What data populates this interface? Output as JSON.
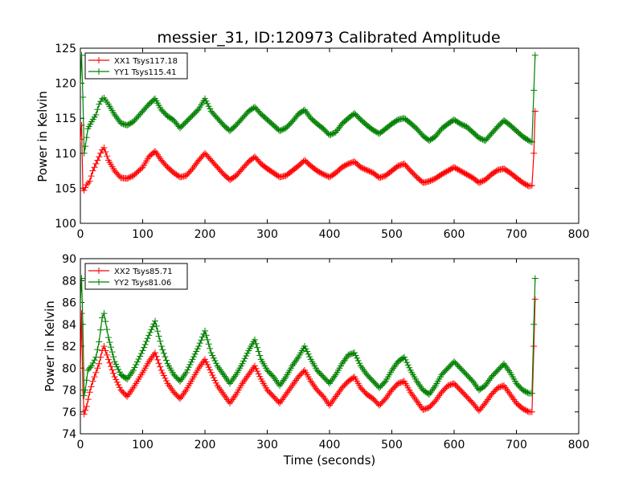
{
  "chart_data": [
    {
      "type": "line",
      "title": "messier_31, ID:120973 Calibrated Amplitude",
      "xlabel": "",
      "ylabel": "Power in Kelvin",
      "xlim": [
        0,
        800
      ],
      "ylim": [
        100,
        125
      ],
      "xticks": [
        0,
        100,
        200,
        300,
        400,
        500,
        600,
        700,
        800
      ],
      "yticks": [
        100,
        105,
        110,
        115,
        120,
        125
      ],
      "grid": false,
      "legend": "top-left",
      "marker": "plus",
      "series": [
        {
          "name": "XX1 Tsys117.18",
          "color": "#ff0000",
          "x": [
            0,
            2,
            4,
            6,
            10,
            15,
            20,
            25,
            30,
            35,
            38,
            45,
            55,
            65,
            75,
            85,
            100,
            110,
            120,
            130,
            140,
            150,
            160,
            170,
            180,
            190,
            200,
            210,
            220,
            230,
            240,
            250,
            260,
            270,
            280,
            290,
            300,
            310,
            320,
            330,
            340,
            350,
            360,
            370,
            380,
            390,
            400,
            410,
            420,
            430,
            440,
            450,
            460,
            470,
            480,
            490,
            500,
            510,
            520,
            530,
            540,
            550,
            560,
            570,
            580,
            590,
            600,
            610,
            620,
            630,
            640,
            650,
            660,
            670,
            680,
            690,
            700,
            710,
            720,
            725,
            728,
            730
          ],
          "values": [
            112,
            114,
            105,
            104.7,
            105.5,
            106,
            107.5,
            108.5,
            109.5,
            110.5,
            110.8,
            109,
            107.5,
            106.5,
            106.4,
            106.8,
            108,
            109.5,
            110.3,
            109,
            108,
            107.2,
            106.6,
            106.8,
            107.8,
            109,
            110,
            109,
            108,
            107,
            106.2,
            106.8,
            107.8,
            108.8,
            109.5,
            108.5,
            107.8,
            107.2,
            106.6,
            106.8,
            107.5,
            108.2,
            109,
            108.2,
            107.5,
            107,
            106.6,
            107.2,
            108,
            108.5,
            108.8,
            108,
            107.6,
            107.2,
            106.5,
            106.8,
            107.5,
            108.2,
            108.5,
            107.5,
            106.6,
            105.8,
            106,
            106.4,
            107,
            107.5,
            108,
            107.5,
            107,
            106.5,
            105.8,
            106.2,
            107,
            107.6,
            107.8,
            107.2,
            106.5,
            105.8,
            105.3,
            105.4,
            110,
            116
          ]
        },
        {
          "name": "YY1 Tsys115.41",
          "color": "#008000",
          "x": [
            0,
            2,
            4,
            6,
            8,
            12,
            18,
            25,
            30,
            35,
            38,
            45,
            55,
            65,
            75,
            85,
            100,
            110,
            120,
            130,
            140,
            150,
            160,
            170,
            180,
            190,
            200,
            210,
            220,
            230,
            240,
            250,
            260,
            270,
            280,
            290,
            300,
            310,
            320,
            330,
            340,
            350,
            360,
            370,
            380,
            390,
            400,
            410,
            420,
            430,
            440,
            450,
            460,
            470,
            480,
            490,
            500,
            510,
            520,
            530,
            540,
            550,
            560,
            570,
            580,
            590,
            600,
            610,
            620,
            630,
            640,
            650,
            660,
            670,
            680,
            690,
            700,
            710,
            720,
            725,
            728,
            730
          ],
          "values": [
            120,
            124,
            118,
            110,
            111,
            113.5,
            114.5,
            115.5,
            117,
            117.8,
            117.9,
            117,
            115.5,
            114.3,
            114,
            114.5,
            116,
            117,
            117.8,
            116.2,
            115.3,
            114.7,
            113.6,
            114.5,
            115.4,
            116.3,
            117.8,
            116,
            115,
            114,
            113.2,
            114,
            115,
            116,
            116.6,
            115.6,
            114.8,
            114,
            113.2,
            113.6,
            114.5,
            115.6,
            116.2,
            115,
            114.2,
            113.5,
            112.6,
            113,
            114.2,
            115,
            115.7,
            114.8,
            114,
            113.3,
            112.8,
            113.5,
            114.2,
            114.8,
            115,
            114.3,
            113.5,
            112.5,
            111.8,
            112.4,
            113.5,
            114.2,
            114.8,
            114.2,
            113.8,
            113,
            112.2,
            111.8,
            112.8,
            113.8,
            114.7,
            114,
            113.2,
            112.4,
            111.8,
            111.6,
            119,
            124
          ]
        }
      ]
    },
    {
      "type": "line",
      "title": "",
      "xlabel": "Time (seconds)",
      "ylabel": "Power in Kelvin",
      "xlim": [
        0,
        800
      ],
      "ylim": [
        74,
        90
      ],
      "xticks": [
        0,
        100,
        200,
        300,
        400,
        500,
        600,
        700,
        800
      ],
      "yticks": [
        74,
        76,
        78,
        80,
        82,
        84,
        86,
        88,
        90
      ],
      "grid": false,
      "legend": "top-left",
      "marker": "plus",
      "series": [
        {
          "name": "XX2 Tsys85.71",
          "color": "#ff0000",
          "x": [
            0,
            2,
            4,
            6,
            10,
            15,
            20,
            25,
            30,
            35,
            38,
            45,
            55,
            65,
            75,
            85,
            100,
            110,
            120,
            130,
            140,
            150,
            160,
            170,
            180,
            190,
            200,
            210,
            220,
            230,
            240,
            250,
            260,
            270,
            280,
            290,
            300,
            310,
            320,
            330,
            340,
            350,
            360,
            370,
            380,
            390,
            400,
            410,
            420,
            430,
            440,
            450,
            460,
            470,
            480,
            490,
            500,
            510,
            520,
            530,
            540,
            550,
            560,
            570,
            580,
            590,
            600,
            610,
            620,
            630,
            640,
            650,
            660,
            670,
            680,
            690,
            700,
            710,
            720,
            725,
            728,
            730
          ],
          "values": [
            80,
            85,
            78,
            75.8,
            76.5,
            77.8,
            78.8,
            79.6,
            80.4,
            81.6,
            82,
            80.8,
            79.2,
            78,
            77.4,
            78.2,
            79.6,
            80.6,
            81.4,
            79.8,
            78.6,
            77.8,
            77.2,
            78,
            79,
            80,
            80.8,
            79.6,
            78.4,
            77.6,
            76.8,
            77.6,
            78.6,
            79.4,
            80.2,
            79,
            78,
            77.4,
            76.8,
            77.6,
            78.4,
            79.2,
            79.8,
            78.8,
            78,
            77.4,
            76.6,
            77.4,
            78.2,
            78.8,
            79.2,
            78.2,
            77.6,
            77.2,
            76.6,
            77.2,
            78,
            78.6,
            78.8,
            77.8,
            77,
            76.2,
            76.4,
            77,
            77.8,
            78.4,
            78.6,
            78,
            77.4,
            76.8,
            76.1,
            76.8,
            77.6,
            78.2,
            78.4,
            77.6,
            76.8,
            76.3,
            76,
            76,
            82,
            86.3
          ]
        },
        {
          "name": "YY2 Tsys81.06",
          "color": "#008000",
          "x": [
            0,
            2,
            4,
            6,
            8,
            12,
            18,
            25,
            30,
            35,
            38,
            45,
            55,
            65,
            75,
            85,
            100,
            110,
            120,
            130,
            140,
            150,
            160,
            170,
            180,
            190,
            200,
            210,
            220,
            230,
            240,
            250,
            260,
            270,
            280,
            290,
            300,
            310,
            320,
            330,
            340,
            350,
            360,
            370,
            380,
            390,
            400,
            410,
            420,
            430,
            440,
            450,
            460,
            470,
            480,
            490,
            500,
            510,
            520,
            530,
            540,
            550,
            560,
            570,
            580,
            590,
            600,
            610,
            620,
            630,
            640,
            650,
            660,
            670,
            680,
            690,
            700,
            710,
            720,
            725,
            728,
            730
          ],
          "values": [
            86,
            88.2,
            84,
            77.5,
            78,
            79.8,
            80.2,
            81,
            82.4,
            84.6,
            85,
            82.8,
            80.6,
            79.4,
            79,
            79.8,
            81.6,
            83,
            84.3,
            82,
            80.4,
            79.4,
            78.8,
            79.6,
            80.8,
            82,
            83.4,
            81.4,
            80.2,
            79.4,
            78.6,
            79.4,
            80.4,
            81.6,
            82.6,
            80.8,
            79.8,
            79.2,
            78.4,
            79.2,
            80.2,
            81,
            82,
            80.8,
            79.8,
            79.2,
            78.6,
            79.4,
            80.4,
            81.2,
            81.4,
            80.2,
            79.4,
            78.8,
            78.2,
            78.8,
            79.8,
            80.6,
            81,
            79.8,
            78.8,
            78,
            77.6,
            78.4,
            79.4,
            80,
            80.6,
            80,
            79.4,
            78.8,
            78,
            78.4,
            79.2,
            79.8,
            80.4,
            79.6,
            78.6,
            78,
            77.7,
            77.7,
            84,
            88.2
          ]
        }
      ]
    }
  ]
}
